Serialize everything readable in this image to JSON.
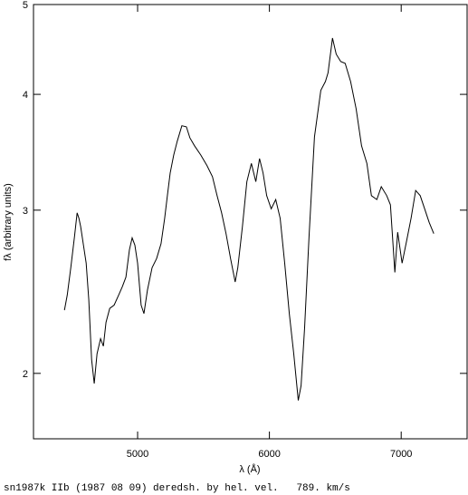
{
  "chart_data": {
    "type": "line",
    "x_label": "λ (Å)",
    "y_label": "fλ (arbitrary units)",
    "caption": "sn1987k IIb (1987 08 09) deredsh. by hel. vel.   789. km/s",
    "log_y": true,
    "color": "#000000",
    "xlim": [
      4210,
      7500
    ],
    "xticks": [
      5000,
      6000,
      7000
    ],
    "ylim": [
      1.7,
      5
    ],
    "yticks": [
      2,
      3,
      4,
      5
    ],
    "x": [
      4445,
      4466,
      4493,
      4521,
      4541,
      4555,
      4568,
      4589,
      4610,
      4630,
      4651,
      4671,
      4692,
      4719,
      4740,
      4760,
      4788,
      4822,
      4856,
      4884,
      4911,
      4938,
      4959,
      4979,
      5000,
      5027,
      5048,
      5075,
      5110,
      5144,
      5178,
      5205,
      5226,
      5247,
      5274,
      5301,
      5336,
      5370,
      5397,
      5432,
      5479,
      5527,
      5568,
      5603,
      5637,
      5671,
      5705,
      5740,
      5760,
      5795,
      5829,
      5863,
      5897,
      5925,
      5952,
      5979,
      6014,
      6048,
      6082,
      6116,
      6151,
      6185,
      6219,
      6240,
      6267,
      6301,
      6342,
      6390,
      6425,
      6445,
      6479,
      6507,
      6541,
      6575,
      6616,
      6658,
      6699,
      6740,
      6774,
      6815,
      6849,
      6890,
      6918,
      6952,
      6973,
      7007,
      7041,
      7075,
      7110,
      7144,
      7178,
      7212,
      7247
    ],
    "series": [
      {
        "name": "sn1987k",
        "color": "#000000",
        "values": [
          2.34,
          2.43,
          2.6,
          2.81,
          2.98,
          2.94,
          2.88,
          2.75,
          2.63,
          2.4,
          2.07,
          1.95,
          2.1,
          2.18,
          2.14,
          2.27,
          2.35,
          2.37,
          2.43,
          2.48,
          2.54,
          2.72,
          2.8,
          2.75,
          2.63,
          2.37,
          2.32,
          2.46,
          2.6,
          2.66,
          2.76,
          2.94,
          3.11,
          3.29,
          3.44,
          3.56,
          3.7,
          3.69,
          3.59,
          3.52,
          3.44,
          3.35,
          3.26,
          3.11,
          2.98,
          2.83,
          2.66,
          2.51,
          2.6,
          2.88,
          3.22,
          3.37,
          3.22,
          3.41,
          3.29,
          3.11,
          3.01,
          3.08,
          2.94,
          2.63,
          2.32,
          2.1,
          1.87,
          1.94,
          2.24,
          2.81,
          3.6,
          4.04,
          4.13,
          4.22,
          4.6,
          4.42,
          4.34,
          4.32,
          4.13,
          3.86,
          3.52,
          3.37,
          3.11,
          3.08,
          3.18,
          3.11,
          3.04,
          2.57,
          2.84,
          2.63,
          2.78,
          2.94,
          3.15,
          3.11,
          3.01,
          2.91,
          2.83
        ]
      }
    ]
  }
}
